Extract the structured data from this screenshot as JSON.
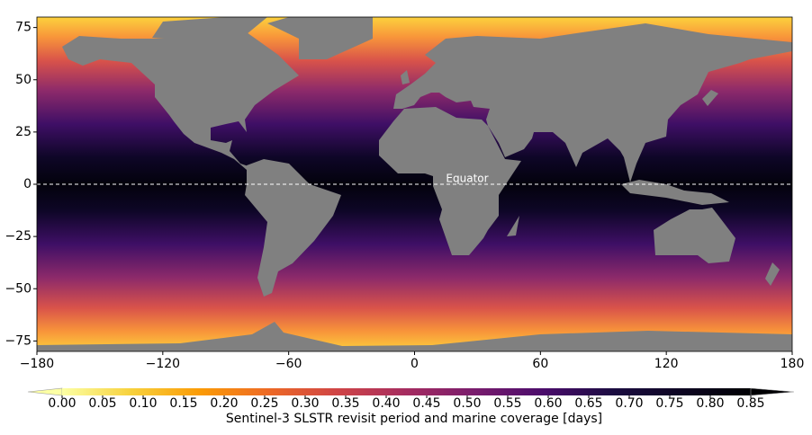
{
  "map": {
    "xlim": [
      -180,
      180
    ],
    "ylim": [
      -80,
      80
    ],
    "xticks": [
      {
        "value": -180,
        "label": "−180"
      },
      {
        "value": -120,
        "label": "−120"
      },
      {
        "value": -60,
        "label": "−60"
      },
      0,
      60,
      120,
      180
    ],
    "yticks": [
      {
        "value": -75,
        "label": "−75"
      },
      {
        "value": -50,
        "label": "−50"
      },
      {
        "value": -25,
        "label": "−25"
      },
      0,
      25,
      50,
      75
    ],
    "equator": {
      "lat": 0,
      "label": "Equator"
    },
    "colorbar": {
      "lim": [
        0,
        0.85
      ],
      "ticks": [
        {
          "value": 0,
          "label": "0.00"
        },
        0.05,
        {
          "value": 0.1,
          "label": "0.10"
        },
        0.15,
        {
          "value": 0.2,
          "label": "0.20"
        },
        0.25,
        {
          "value": 0.3,
          "label": "0.30"
        },
        0.35,
        {
          "value": 0.4,
          "label": "0.40"
        },
        0.45,
        {
          "value": 0.5,
          "label": "0.50"
        },
        0.55,
        {
          "value": 0.6,
          "label": "0.60"
        },
        0.65,
        {
          "value": 0.7,
          "label": "0.70"
        },
        0.75,
        {
          "value": 0.8,
          "label": "0.80"
        },
        0.85
      ],
      "label": "Sentinel-3 SLSTR revisit period and marine coverage [days]"
    }
  }
}
